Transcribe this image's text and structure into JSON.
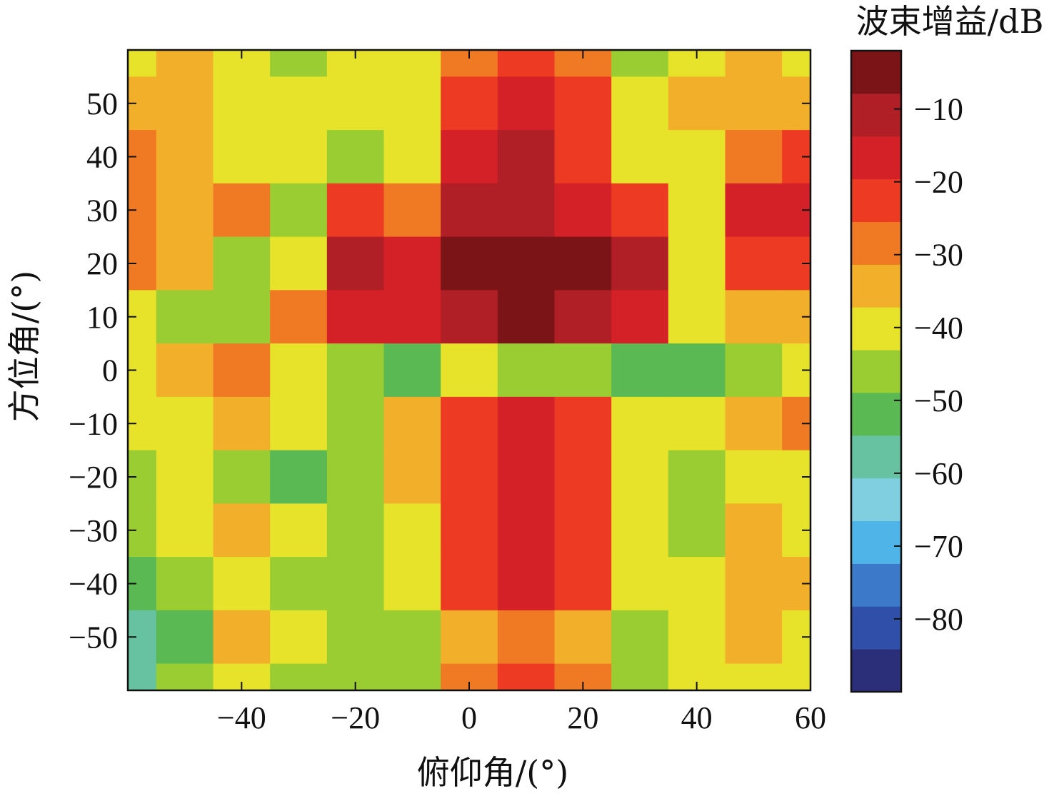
{
  "chart_data": {
    "type": "heatmap",
    "subtype": "filled-contour",
    "xlabel": "俯仰角/(°)",
    "ylabel": "方位角/(°)",
    "xlim": [
      -60,
      60
    ],
    "ylim": [
      -60,
      60
    ],
    "xticks": [
      -40,
      -20,
      0,
      20,
      40,
      60
    ],
    "yticks": [
      -50,
      -40,
      -30,
      -20,
      -10,
      0,
      10,
      20,
      30,
      40,
      50
    ],
    "grid": false,
    "colorbar": {
      "label": "波束增益/dB",
      "range": [
        -90,
        -2
      ],
      "ticks": [
        -10,
        -20,
        -30,
        -40,
        -50,
        -60,
        -70,
        -80
      ],
      "colormap": [
        "#2b2f7a",
        "#2f4fa8",
        "#3d79c9",
        "#4fb4e8",
        "#7fcfe0",
        "#66c2a0",
        "#5ab953",
        "#9acd32",
        "#e6e32a",
        "#f2b02a",
        "#f07a24",
        "#ec3a23",
        "#d42027",
        "#b01e26",
        "#7a1416"
      ]
    },
    "grid_x": [
      -60,
      -50,
      -40,
      -30,
      -20,
      -10,
      0,
      10,
      20,
      30,
      40,
      50,
      60
    ],
    "grid_y": [
      60,
      50,
      40,
      30,
      20,
      10,
      0,
      -10,
      -20,
      -30,
      -40,
      -50,
      -60
    ],
    "z": [
      [
        -38,
        -36,
        -40,
        -44,
        -40,
        -42,
        -30,
        -24,
        -30,
        -44,
        -40,
        -36,
        -38
      ],
      [
        -36,
        -34,
        -38,
        -42,
        -42,
        -38,
        -22,
        -16,
        -22,
        -40,
        -36,
        -34,
        -36
      ],
      [
        -30,
        -34,
        -42,
        -38,
        -46,
        -40,
        -18,
        -12,
        -20,
        -42,
        -38,
        -28,
        -24
      ],
      [
        -26,
        -32,
        -30,
        -44,
        -24,
        -30,
        -12,
        -10,
        -14,
        -22,
        -38,
        -18,
        -14
      ],
      [
        -30,
        -36,
        -46,
        -40,
        -12,
        -16,
        -6,
        -2,
        -6,
        -12,
        -40,
        -22,
        -20
      ],
      [
        -40,
        -44,
        -48,
        -30,
        -14,
        -18,
        -8,
        -4,
        -8,
        -16,
        -38,
        -36,
        -34
      ],
      [
        -42,
        -34,
        -30,
        -38,
        -48,
        -50,
        -42,
        -48,
        -46,
        -50,
        -50,
        -44,
        -40
      ],
      [
        -40,
        -38,
        -36,
        -40,
        -44,
        -34,
        -20,
        -14,
        -20,
        -38,
        -42,
        -34,
        -30
      ],
      [
        -44,
        -42,
        -44,
        -52,
        -48,
        -36,
        -22,
        -16,
        -22,
        -38,
        -46,
        -42,
        -40
      ],
      [
        -46,
        -38,
        -36,
        -42,
        -46,
        -38,
        -24,
        -18,
        -24,
        -40,
        -44,
        -36,
        -38
      ],
      [
        -54,
        -46,
        -40,
        -44,
        -48,
        -40,
        -22,
        -16,
        -22,
        -42,
        -40,
        -34,
        -36
      ],
      [
        -60,
        -54,
        -36,
        -40,
        -44,
        -44,
        -32,
        -28,
        -32,
        -44,
        -38,
        -36,
        -38
      ],
      [
        -58,
        -48,
        -40,
        -44,
        -48,
        -46,
        -30,
        -22,
        -28,
        -46,
        -42,
        -40,
        -40
      ]
    ]
  }
}
